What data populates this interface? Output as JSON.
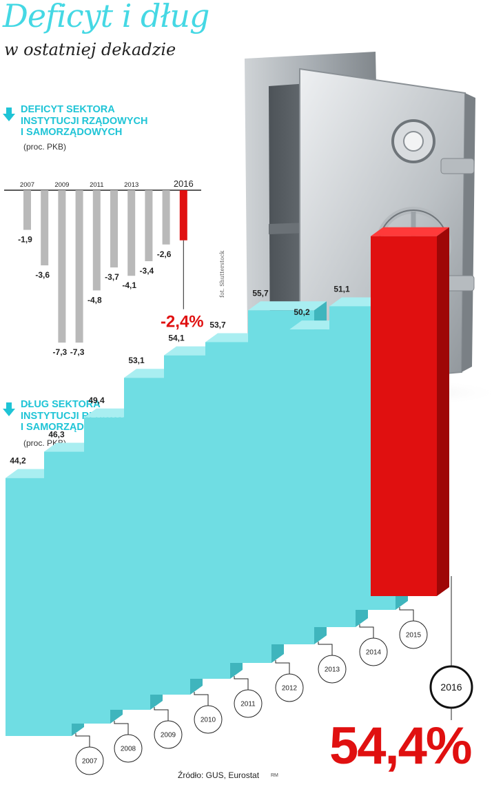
{
  "header": {
    "title": "Deficyt i dług",
    "subtitle": "w ostatniej dekadzie"
  },
  "deficit_section": {
    "lines": [
      "DEFICYT SEKTORA",
      "INSTYTUCJI RZĄDOWYCH",
      "I SAMORZĄDOWYCH"
    ],
    "unit": "(proc. PKB)"
  },
  "debt_section": {
    "lines": [
      "DŁUG SEKTORA",
      "INSTYTUCJI RZĄDOWYCH",
      "I SAMORZĄDOWYCH"
    ],
    "unit": "(proc. PKB)"
  },
  "footer": {
    "source": "Źródło: GUS, Eurostat",
    "initials": "RM",
    "photo_credit": "fot. Shutterstock"
  },
  "colors": {
    "accent": "#45d8e4",
    "deficit_bar": "#b9b9b9",
    "highlight": "#e01010",
    "debt_front": "#6fdde3",
    "debt_top": "#a9eef1",
    "debt_side": "#3fb5bd"
  },
  "chart_data": [
    {
      "type": "bar",
      "title": "DEFICYT SEKTORA INSTYTUCJI RZĄDOWYCH I SAMORZĄDOWYCH",
      "subtitle": "(proc. PKB)",
      "categories": [
        "2007",
        "2008",
        "2009",
        "2010",
        "2011",
        "2012",
        "2013",
        "2014",
        "2015",
        "2016"
      ],
      "tick_labels": [
        "2007",
        "2009",
        "2011",
        "2013",
        "2016"
      ],
      "values": [
        -1.9,
        -3.6,
        -7.3,
        -7.3,
        -4.8,
        -3.7,
        -4.1,
        -3.4,
        -2.6,
        -2.4
      ],
      "value_labels": [
        "-1,9",
        "-3,6",
        "-7,3",
        "-7,3",
        "-4,8",
        "-3,7",
        "-4,1",
        "-3,4",
        "-2,6",
        "-2,4%"
      ],
      "highlight_index": 9,
      "ylim": [
        -8,
        0
      ],
      "grid": false,
      "legend": "none"
    },
    {
      "type": "bar",
      "title": "DŁUG SEKTORA INSTYTUCJI RZĄDOWYCH I SAMORZĄDOWYCH",
      "subtitle": "(proc. PKB)",
      "categories": [
        "2007",
        "2008",
        "2009",
        "2010",
        "2011",
        "2012",
        "2013",
        "2014",
        "2015",
        "2016"
      ],
      "values": [
        44.2,
        46.3,
        49.4,
        53.1,
        54.1,
        53.7,
        55.7,
        50.2,
        51.1,
        54.4
      ],
      "value_labels": [
        "44,2",
        "46,3",
        "49,4",
        "53,1",
        "54,1",
        "53,7",
        "55,7",
        "50,2",
        "51,1",
        "54,4%"
      ],
      "highlight_index": 9,
      "grid": false,
      "legend": "none"
    }
  ]
}
